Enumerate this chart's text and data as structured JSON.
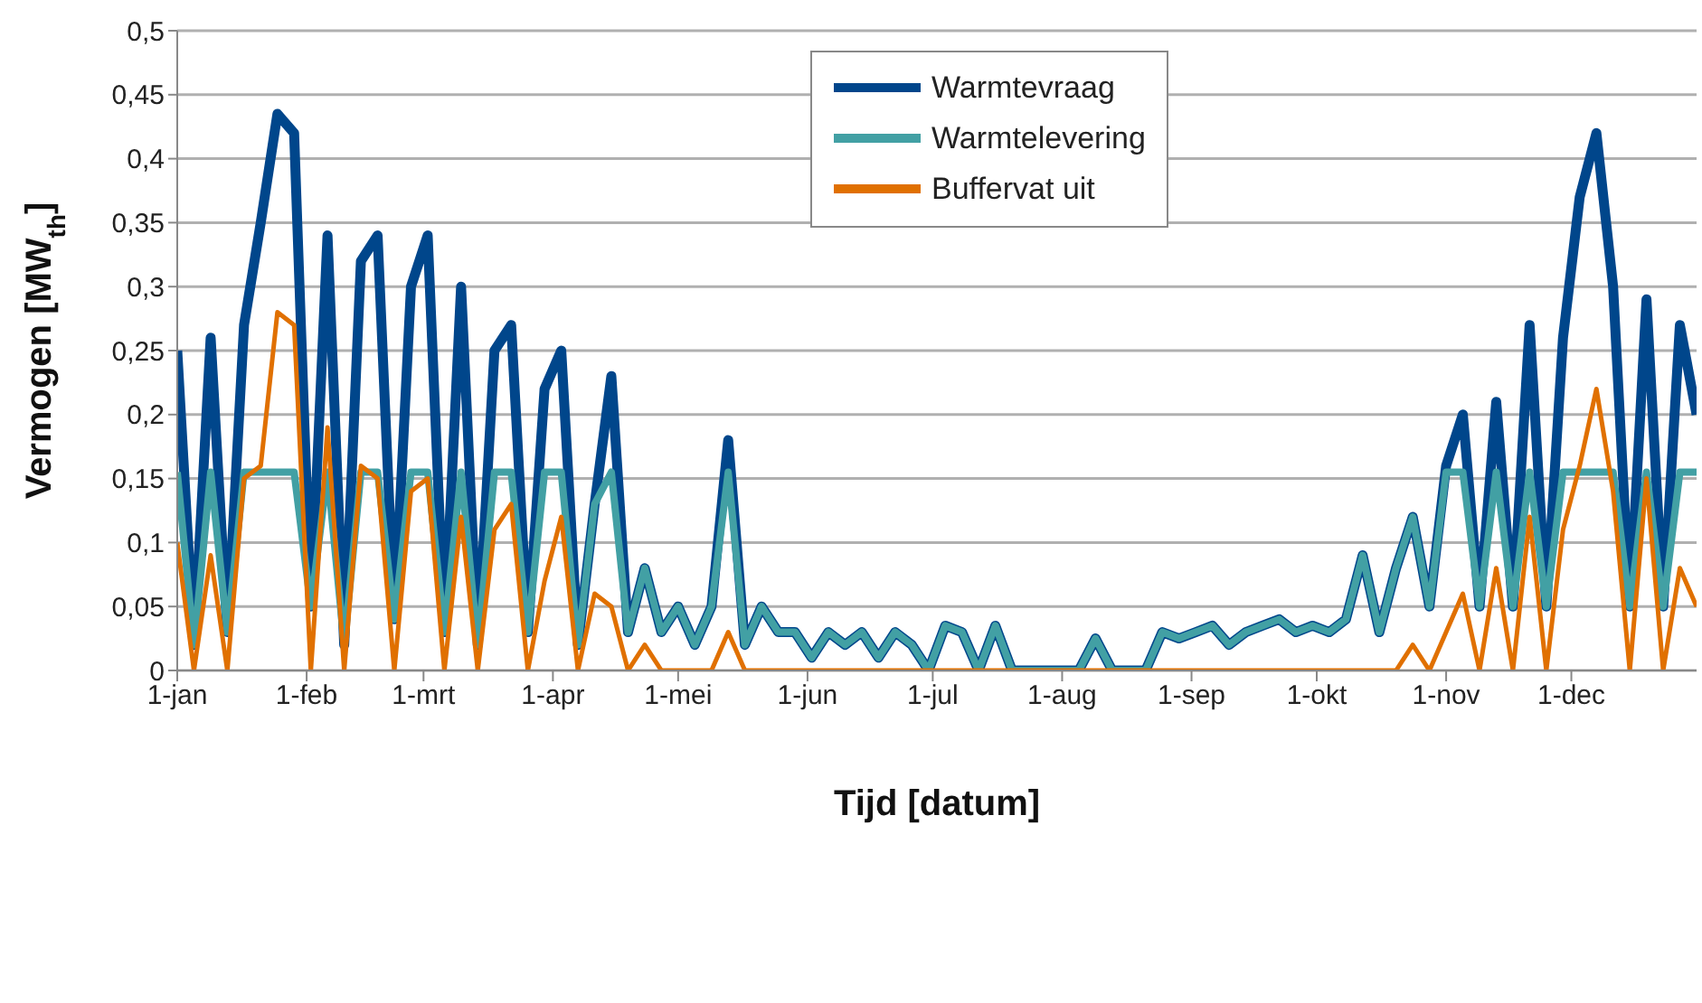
{
  "chart_data": {
    "type": "line",
    "xlabel": "Tijd [datum]",
    "ylabel": "Vermogen [MW$_{th}$]",
    "x": [
      "--01-01",
      "--01-05",
      "--01-09",
      "--01-13",
      "--01-17",
      "--01-21",
      "--01-25",
      "--01-29",
      "--02-02",
      "--02-06",
      "--02-10",
      "--02-14",
      "--02-18",
      "--02-22",
      "--02-26",
      "--03-02",
      "--03-06",
      "--03-10",
      "--03-14",
      "--03-18",
      "--03-22",
      "--03-26",
      "--03-30",
      "--04-03",
      "--04-07",
      "--04-11",
      "--04-15",
      "--04-19",
      "--04-23",
      "--04-27",
      "--05-01",
      "--05-05",
      "--05-09",
      "--05-13",
      "--05-17",
      "--05-21",
      "--05-25",
      "--05-29",
      "--06-02",
      "--06-06",
      "--06-10",
      "--06-14",
      "--06-18",
      "--06-22",
      "--06-26",
      "--06-30",
      "--07-04",
      "--07-08",
      "--07-12",
      "--07-16",
      "--07-20",
      "--07-24",
      "--07-28",
      "--08-01",
      "--08-05",
      "--08-09",
      "--08-13",
      "--08-17",
      "--08-21",
      "--08-25",
      "--08-29",
      "--09-02",
      "--09-06",
      "--09-10",
      "--09-14",
      "--09-18",
      "--09-22",
      "--09-26",
      "--09-30",
      "--10-04",
      "--10-08",
      "--10-12",
      "--10-16",
      "--10-20",
      "--10-24",
      "--10-28",
      "--11-01",
      "--11-05",
      "--11-09",
      "--11-13",
      "--11-17",
      "--11-21",
      "--11-25",
      "--11-29",
      "--12-03",
      "--12-07",
      "--12-11",
      "--12-15",
      "--12-19",
      "--12-23",
      "--12-27",
      "--12-31"
    ],
    "series": [
      {
        "name": "Warmtevraag",
        "color": "#00468b",
        "values": [
          0.25,
          0.02,
          0.26,
          0.03,
          0.27,
          0.35,
          0.435,
          0.42,
          0.05,
          0.34,
          0.02,
          0.32,
          0.34,
          0.04,
          0.3,
          0.34,
          0.03,
          0.3,
          0.02,
          0.25,
          0.27,
          0.03,
          0.22,
          0.25,
          0.02,
          0.13,
          0.23,
          0.03,
          0.08,
          0.03,
          0.05,
          0.02,
          0.05,
          0.18,
          0.02,
          0.05,
          0.03,
          0.03,
          0.01,
          0.03,
          0.02,
          0.03,
          0.01,
          0.03,
          0.02,
          0,
          0.035,
          0.03,
          0,
          0.035,
          0,
          0,
          0,
          0,
          0,
          0.025,
          0,
          0,
          0,
          0.03,
          0.025,
          0.03,
          0.035,
          0.02,
          0.03,
          0.035,
          0.04,
          0.03,
          0.035,
          0.03,
          0.04,
          0.09,
          0.03,
          0.08,
          0.12,
          0.05,
          0.16,
          0.2,
          0.05,
          0.21,
          0.05,
          0.27,
          0.05,
          0.26,
          0.37,
          0.42,
          0.3,
          0.05,
          0.29,
          0.05,
          0.27,
          0.2
        ]
      },
      {
        "name": "Warmtelevering",
        "color": "#42a0a4",
        "values": [
          0.155,
          0.02,
          0.155,
          0.03,
          0.155,
          0.155,
          0.155,
          0.155,
          0.05,
          0.155,
          0.02,
          0.155,
          0.155,
          0.04,
          0.155,
          0.155,
          0.03,
          0.155,
          0.02,
          0.155,
          0.155,
          0.03,
          0.155,
          0.155,
          0.02,
          0.13,
          0.155,
          0.03,
          0.08,
          0.03,
          0.05,
          0.02,
          0.05,
          0.155,
          0.02,
          0.05,
          0.03,
          0.03,
          0.01,
          0.03,
          0.02,
          0.03,
          0.01,
          0.03,
          0.02,
          0,
          0.035,
          0.03,
          0,
          0.035,
          0,
          0,
          0,
          0,
          0,
          0.025,
          0,
          0,
          0,
          0.03,
          0.025,
          0.03,
          0.035,
          0.02,
          0.03,
          0.035,
          0.04,
          0.03,
          0.035,
          0.03,
          0.04,
          0.09,
          0.03,
          0.08,
          0.12,
          0.05,
          0.155,
          0.155,
          0.05,
          0.155,
          0.05,
          0.155,
          0.05,
          0.155,
          0.155,
          0.155,
          0.155,
          0.05,
          0.155,
          0.05,
          0.155,
          0.155
        ]
      },
      {
        "name": "Buffervat uit",
        "color": "#e07000",
        "values": [
          0.1,
          0,
          0.09,
          0,
          0.15,
          0.16,
          0.28,
          0.27,
          0,
          0.19,
          0,
          0.16,
          0.15,
          0,
          0.14,
          0.15,
          0,
          0.12,
          0,
          0.11,
          0.13,
          0,
          0.07,
          0.12,
          0,
          0.06,
          0.05,
          0,
          0.02,
          0,
          0,
          0,
          0,
          0.03,
          0,
          0,
          0,
          0,
          0,
          0,
          0,
          0,
          0,
          0,
          0,
          0,
          0,
          0,
          0,
          0,
          0,
          0,
          0,
          0,
          0,
          0,
          0,
          0,
          0,
          0,
          0,
          0,
          0,
          0,
          0,
          0,
          0,
          0,
          0,
          0,
          0,
          0,
          0,
          0,
          0.02,
          0,
          0.03,
          0.06,
          0,
          0.08,
          0,
          0.12,
          0,
          0.11,
          0.16,
          0.22,
          0.14,
          0,
          0.15,
          0,
          0.08,
          0.05
        ]
      }
    ],
    "xlim": [
      "--01-01",
      "--12-31"
    ],
    "xticks": [
      {
        "value": "--01-01",
        "label": "1-jan"
      },
      {
        "value": "--02-01",
        "label": "1-feb"
      },
      {
        "value": "--03-01",
        "label": "1-mrt"
      },
      {
        "value": "--04-01",
        "label": "1-apr"
      },
      {
        "value": "--05-01",
        "label": "1-mei"
      },
      {
        "value": "--06-01",
        "label": "1-jun"
      },
      {
        "value": "--07-01",
        "label": "1-jul"
      },
      {
        "value": "--08-01",
        "label": "1-aug"
      },
      {
        "value": "--09-01",
        "label": "1-sep"
      },
      {
        "value": "--10-01",
        "label": "1-okt"
      },
      {
        "value": "--11-01",
        "label": "1-nov"
      },
      {
        "value": "--12-01",
        "label": "1-dec"
      }
    ],
    "ylim": [
      0,
      0.5
    ],
    "yticks": [
      0,
      {
        "value": 0.05,
        "label": "0,05"
      },
      {
        "value": 0.1,
        "label": "0,1"
      },
      {
        "value": 0.15,
        "label": "0,15"
      },
      {
        "value": 0.2,
        "label": "0,2"
      },
      {
        "value": 0.25,
        "label": "0,25"
      },
      {
        "value": 0.3,
        "label": "0,3"
      },
      {
        "value": 0.35,
        "label": "0,35"
      },
      {
        "value": 0.4,
        "label": "0,4"
      },
      {
        "value": 0.45,
        "label": "0,45"
      },
      {
        "value": 0.5,
        "label": "0,5"
      }
    ],
    "grid": "y",
    "legend": "top",
    "marker": "none",
    "line_style": "solid"
  }
}
